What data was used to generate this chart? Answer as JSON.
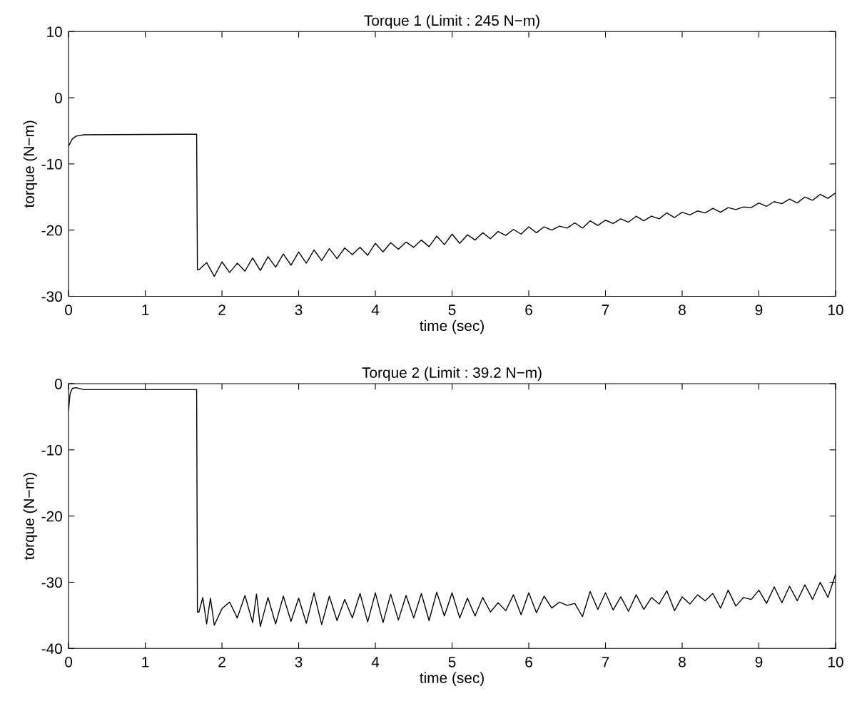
{
  "chart_data": [
    {
      "type": "line",
      "title": "Torque 1 (Limit : 245 N−m)",
      "xlabel": "time (sec)",
      "ylabel": "torque (N−m)",
      "xlim": [
        0,
        10
      ],
      "ylim": [
        -30,
        10
      ],
      "xticks": [
        0,
        1,
        2,
        3,
        4,
        5,
        6,
        7,
        8,
        9,
        10
      ],
      "yticks": [
        -30,
        -20,
        -10,
        0,
        10
      ],
      "grid": false,
      "series": [
        {
          "color": "#000000",
          "x": [
            0,
            0.05,
            0.1,
            0.2,
            1.67,
            1.68,
            1.7,
            1.8,
            1.9,
            2.0,
            2.1,
            2.2,
            2.3,
            2.4,
            2.5,
            2.6,
            2.7,
            2.8,
            2.9,
            3.0,
            3.1,
            3.2,
            3.3,
            3.4,
            3.5,
            3.6,
            3.7,
            3.8,
            3.9,
            4.0,
            4.1,
            4.2,
            4.3,
            4.4,
            4.5,
            4.6,
            4.7,
            4.8,
            4.9,
            5.0,
            5.1,
            5.2,
            5.3,
            5.4,
            5.5,
            5.6,
            5.7,
            5.8,
            5.9,
            6.0,
            6.1,
            6.2,
            6.3,
            6.4,
            6.5,
            6.6,
            6.7,
            6.8,
            6.9,
            7.0,
            7.1,
            7.2,
            7.3,
            7.4,
            7.5,
            7.6,
            7.7,
            7.8,
            7.9,
            8.0,
            8.1,
            8.2,
            8.3,
            8.4,
            8.5,
            8.6,
            8.7,
            8.8,
            8.9,
            9.0,
            9.1,
            9.2,
            9.3,
            9.4,
            9.5,
            9.6,
            9.7,
            9.8,
            9.9,
            10.0
          ],
          "values": [
            -7.3,
            -6.2,
            -5.8,
            -5.6,
            -5.5,
            -26.0,
            -26.0,
            -24.9,
            -27.0,
            -24.8,
            -26.4,
            -25.0,
            -26.2,
            -24.2,
            -26.1,
            -24.0,
            -25.6,
            -23.6,
            -25.3,
            -23.3,
            -25.0,
            -23.0,
            -24.6,
            -22.8,
            -24.3,
            -22.7,
            -23.7,
            -22.6,
            -23.8,
            -22.0,
            -23.3,
            -21.9,
            -22.9,
            -21.8,
            -22.6,
            -21.5,
            -22.5,
            -20.9,
            -22.2,
            -20.6,
            -22.0,
            -20.7,
            -21.5,
            -20.4,
            -21.3,
            -20.2,
            -20.8,
            -19.9,
            -20.6,
            -19.5,
            -20.4,
            -19.5,
            -20.0,
            -19.4,
            -19.7,
            -18.9,
            -19.7,
            -18.6,
            -19.3,
            -18.5,
            -19.0,
            -18.3,
            -18.8,
            -17.9,
            -18.6,
            -17.9,
            -18.3,
            -17.4,
            -18.1,
            -17.3,
            -17.7,
            -17.1,
            -17.4,
            -16.7,
            -17.3,
            -16.6,
            -16.9,
            -16.5,
            -16.6,
            -15.9,
            -16.4,
            -15.7,
            -16.0,
            -15.3,
            -15.9,
            -15.0,
            -15.5,
            -14.6,
            -15.2,
            -14.4
          ]
        }
      ]
    },
    {
      "type": "line",
      "title": "Torque 2 (Limit : 39.2 N−m)",
      "xlabel": "time (sec)",
      "ylabel": "torque (N−m)",
      "xlim": [
        0,
        10
      ],
      "ylim": [
        -40,
        0
      ],
      "xticks": [
        0,
        1,
        2,
        3,
        4,
        5,
        6,
        7,
        8,
        9,
        10
      ],
      "yticks": [
        -40,
        -30,
        -20,
        -10,
        0
      ],
      "grid": false,
      "series": [
        {
          "color": "#000000",
          "x": [
            0,
            0.02,
            0.05,
            0.1,
            0.2,
            1.67,
            1.68,
            1.7,
            1.75,
            1.8,
            1.85,
            1.9,
            2.0,
            2.1,
            2.2,
            2.3,
            2.4,
            2.45,
            2.5,
            2.6,
            2.7,
            2.8,
            2.9,
            3.0,
            3.1,
            3.2,
            3.3,
            3.4,
            3.5,
            3.6,
            3.7,
            3.8,
            3.9,
            4.0,
            4.1,
            4.2,
            4.3,
            4.4,
            4.5,
            4.6,
            4.7,
            4.8,
            4.9,
            5.0,
            5.1,
            5.2,
            5.3,
            5.4,
            5.5,
            5.6,
            5.7,
            5.8,
            5.9,
            6.0,
            6.1,
            6.2,
            6.3,
            6.4,
            6.5,
            6.6,
            6.7,
            6.8,
            6.9,
            7.0,
            7.1,
            7.2,
            7.3,
            7.4,
            7.5,
            7.6,
            7.7,
            7.8,
            7.9,
            8.0,
            8.1,
            8.2,
            8.3,
            8.4,
            8.5,
            8.6,
            8.7,
            8.8,
            8.9,
            9.0,
            9.1,
            9.2,
            9.3,
            9.4,
            9.5,
            9.6,
            9.7,
            9.8,
            9.9,
            10.0
          ],
          "values": [
            -4.0,
            -1.5,
            -0.7,
            -0.6,
            -0.9,
            -0.9,
            -34.5,
            -34.5,
            -32.3,
            -36.3,
            -32.4,
            -36.5,
            -34.0,
            -33.0,
            -35.4,
            -32.0,
            -36.1,
            -31.8,
            -36.7,
            -32.3,
            -36.3,
            -32.1,
            -35.9,
            -32.4,
            -36.2,
            -31.6,
            -36.4,
            -32.1,
            -35.8,
            -32.6,
            -35.4,
            -31.7,
            -36.0,
            -31.6,
            -36.1,
            -31.8,
            -35.7,
            -32.0,
            -35.4,
            -31.7,
            -35.8,
            -31.5,
            -35.1,
            -31.6,
            -35.4,
            -32.4,
            -35.1,
            -32.3,
            -34.5,
            -33.1,
            -34.3,
            -31.9,
            -34.9,
            -31.6,
            -34.6,
            -32.1,
            -33.9,
            -33.0,
            -33.5,
            -33.2,
            -35.2,
            -31.4,
            -34.1,
            -31.6,
            -34.2,
            -32.2,
            -34.4,
            -31.9,
            -34.1,
            -32.3,
            -33.3,
            -31.3,
            -34.3,
            -32.2,
            -33.3,
            -31.9,
            -32.8,
            -31.7,
            -33.9,
            -31.2,
            -33.6,
            -32.3,
            -32.6,
            -31.2,
            -33.2,
            -30.7,
            -33.1,
            -30.6,
            -32.8,
            -30.4,
            -32.6,
            -30.0,
            -32.3,
            -28.8
          ]
        }
      ]
    }
  ]
}
